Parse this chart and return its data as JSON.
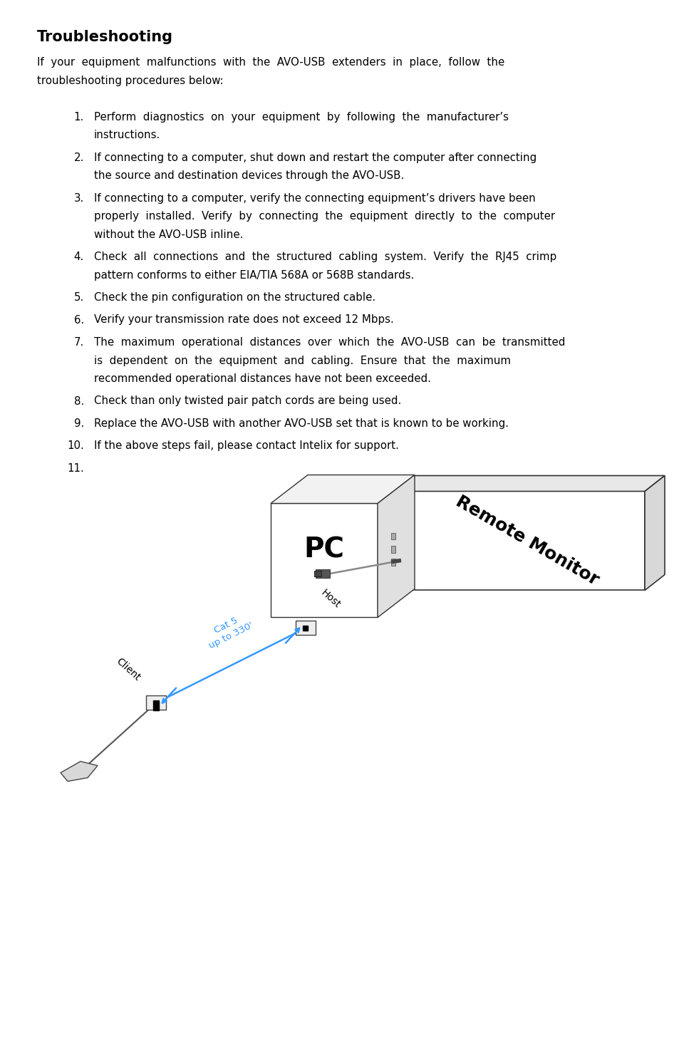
{
  "title": "Troubleshooting",
  "intro_line1": "If  your  equipment  malfunctions  with  the  AVO-USB  extenders  in  place,  follow  the",
  "intro_line2": "troubleshooting procedures below:",
  "items": [
    {
      "num": "1.",
      "lines": [
        "Perform  diagnostics  on  your  equipment  by  following  the  manufacturer’s",
        "instructions."
      ]
    },
    {
      "num": "2.",
      "lines": [
        "If connecting to a computer, shut down and restart the computer after connecting",
        "the source and destination devices through the AVO-USB."
      ]
    },
    {
      "num": "3.",
      "lines": [
        "If connecting to a computer, verify the connecting equipment’s drivers have been",
        "properly  installed.  Verify  by  connecting  the  equipment  directly  to  the  computer",
        "without the AVO-USB inline."
      ]
    },
    {
      "num": "4.",
      "lines": [
        "Check  all  connections  and  the  structured  cabling  system.  Verify  the  RJ45  crimp",
        "pattern conforms to either EIA/TIA 568A or 568B standards."
      ]
    },
    {
      "num": "5.",
      "lines": [
        "Check the pin configuration on the structured cable."
      ]
    },
    {
      "num": "6.",
      "lines": [
        "Verify your transmission rate does not exceed 12 Mbps."
      ]
    },
    {
      "num": "7.",
      "lines": [
        "The  maximum  operational  distances  over  which  the  AVO-USB  can  be  transmitted",
        "is  dependent  on  the  equipment  and  cabling.  Ensure  that  the  maximum",
        "recommended operational distances have not been exceeded."
      ]
    },
    {
      "num": "8.",
      "lines": [
        "Check than only twisted pair patch cords are being used."
      ]
    },
    {
      "num": "9.",
      "lines": [
        "Replace the AVO-USB with another AVO-USB set that is known to be working."
      ]
    },
    {
      "num": "10.",
      "lines": [
        "If the above steps fail, please contact Intelix for support."
      ]
    },
    {
      "num": "11.",
      "lines": [
        ""
      ]
    }
  ],
  "bg_color": "#ffffff",
  "text_color": "#000000",
  "blue_color": "#3399ff"
}
